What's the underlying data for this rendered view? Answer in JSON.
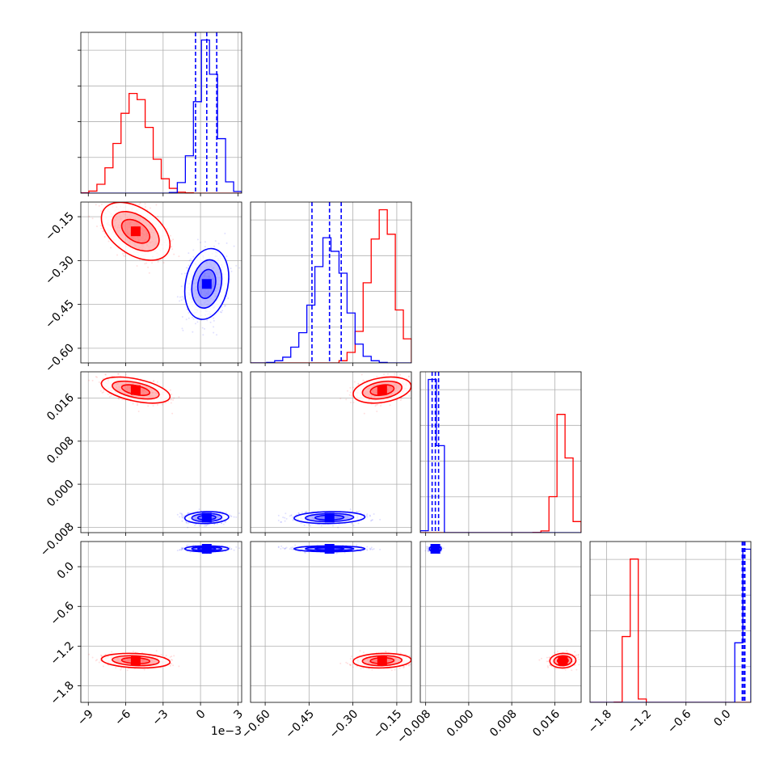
{
  "chart_data": {
    "type": "scatter",
    "title": "",
    "colors": {
      "red_run": "#ff0000",
      "blue_run": "#0000ff"
    },
    "grid": true,
    "parameters": [
      {
        "range": [
          -9.6,
          3.3
        ],
        "ticks": [
          -9,
          -6,
          -3,
          0,
          3
        ],
        "tick_labels": [
          "−9",
          "−6",
          "−3",
          "0",
          "3"
        ],
        "offset_text": "1e−3"
      },
      {
        "range": [
          -0.65,
          -0.1
        ],
        "ticks": [
          -0.6,
          -0.45,
          -0.3,
          -0.15
        ],
        "tick_labels": [
          "−0.60",
          "−0.45",
          "−0.30",
          "−0.15"
        ],
        "offset_text": ""
      },
      {
        "range": [
          -0.009,
          0.0209
        ],
        "ticks": [
          -0.008,
          0.0,
          0.008,
          0.016
        ],
        "tick_labels": [
          "−0.008",
          "0.000",
          "0.008",
          "0.016"
        ],
        "offset_text": ""
      },
      {
        "range": [
          -2.05,
          0.38
        ],
        "ticks": [
          -1.8,
          -1.2,
          -0.6,
          0.0
        ],
        "tick_labels": [
          "−1.8",
          "−1.2",
          "−0.6",
          "0.0"
        ],
        "offset_text": ""
      }
    ],
    "series": [
      {
        "color": "#ff0000",
        "mean": [
          -5.2,
          -0.2,
          0.0175,
          -1.42
        ],
        "std": [
          1.25,
          0.045,
          0.0011,
          0.05
        ],
        "corr": [
          [
            1,
            -0.45,
            -0.5,
            -0.2
          ],
          [
            -0.45,
            1,
            0.3,
            0.1
          ],
          [
            -0.5,
            0.3,
            1,
            0.05
          ],
          [
            -0.2,
            0.1,
            0.05,
            1
          ]
        ],
        "quantiles": null
      },
      {
        "color": "#0000ff",
        "mean": [
          0.5,
          -0.38,
          -0.0062,
          0.27
        ],
        "std": [
          0.8,
          0.055,
          0.0005,
          0.02
        ],
        "corr": [
          [
            1,
            0.2,
            0.1,
            0.0
          ],
          [
            0.2,
            1,
            0.1,
            0.0
          ],
          [
            0.1,
            0.1,
            1,
            0.0
          ],
          [
            0.0,
            0.0,
            0.0,
            1
          ]
        ],
        "quantiles": [
          [
            -0.4,
            0.5,
            1.3
          ],
          [
            -0.44,
            -0.38,
            -0.34
          ],
          [
            -0.0068,
            -0.0062,
            -0.0056
          ],
          [
            0.25,
            0.27,
            0.29
          ]
        ]
      }
    ]
  }
}
